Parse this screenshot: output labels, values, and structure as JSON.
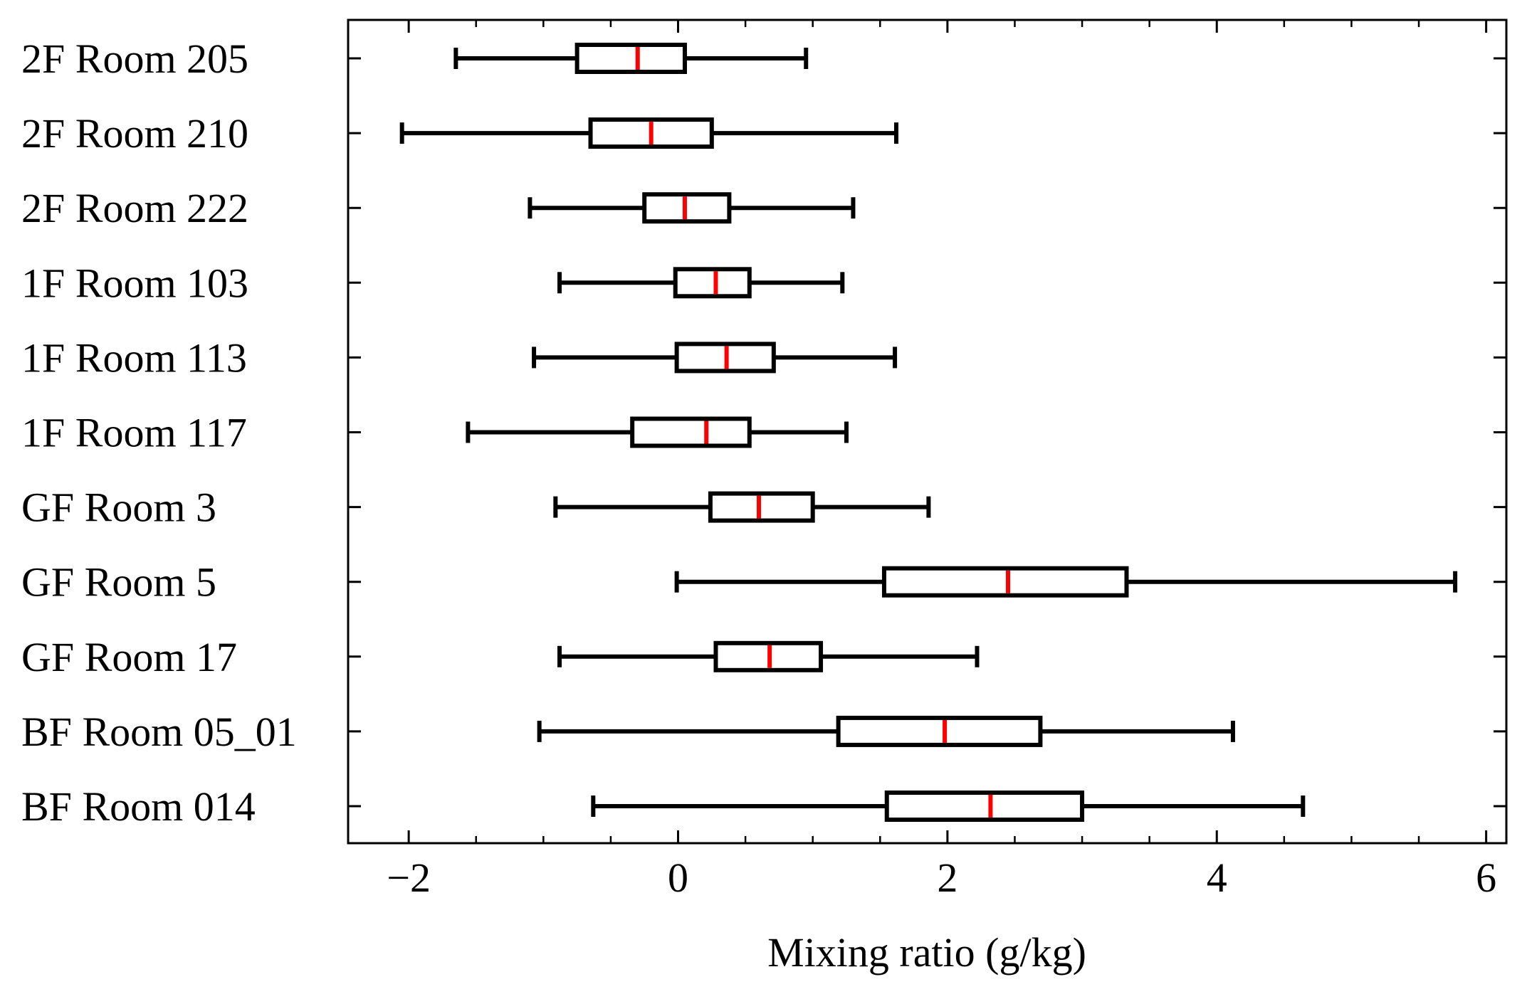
{
  "chart_data": {
    "type": "boxplot",
    "orientation": "horizontal",
    "title": "",
    "xlabel": "Mixing ratio (g/kg)",
    "ylabel": "",
    "xlim": [
      -2.45,
      6.15
    ],
    "xticks": [
      -2,
      0,
      2,
      4,
      6
    ],
    "xtick_labels": [
      "−2",
      "0",
      "2",
      "4",
      "6"
    ],
    "x_minor_step": 0.5,
    "grid": false,
    "categories": [
      "2F Room 205",
      "2F Room 210",
      "2F Room 222",
      "1F Room 103",
      "1F Room 113",
      "1F Room 117",
      "GF Room 3",
      "GF Room 5",
      "GF Room 17",
      "BF Room 05_01",
      "BF Room 014"
    ],
    "boxes": [
      {
        "label": "2F Room 205",
        "whisker_low": -1.65,
        "q1": -0.75,
        "median": -0.3,
        "q3": 0.05,
        "whisker_high": 0.95
      },
      {
        "label": "2F Room 210",
        "whisker_low": -2.05,
        "q1": -0.65,
        "median": -0.2,
        "q3": 0.25,
        "whisker_high": 1.62
      },
      {
        "label": "2F Room 222",
        "whisker_low": -1.1,
        "q1": -0.25,
        "median": 0.05,
        "q3": 0.38,
        "whisker_high": 1.3
      },
      {
        "label": "1F Room 103",
        "whisker_low": -0.88,
        "q1": -0.02,
        "median": 0.28,
        "q3": 0.53,
        "whisker_high": 1.22
      },
      {
        "label": "1F Room 113",
        "whisker_low": -1.07,
        "q1": -0.01,
        "median": 0.36,
        "q3": 0.71,
        "whisker_high": 1.61
      },
      {
        "label": "1F Room 117",
        "whisker_low": -1.56,
        "q1": -0.34,
        "median": 0.21,
        "q3": 0.53,
        "whisker_high": 1.25
      },
      {
        "label": "GF Room 3",
        "whisker_low": -0.91,
        "q1": 0.24,
        "median": 0.6,
        "q3": 1.0,
        "whisker_high": 1.86
      },
      {
        "label": "GF Room 5",
        "whisker_low": -0.01,
        "q1": 1.53,
        "median": 2.45,
        "q3": 3.33,
        "whisker_high": 5.77
      },
      {
        "label": "GF Room 17",
        "whisker_low": -0.88,
        "q1": 0.28,
        "median": 0.68,
        "q3": 1.06,
        "whisker_high": 2.22
      },
      {
        "label": "BF Room 05_01",
        "whisker_low": -1.03,
        "q1": 1.19,
        "median": 1.98,
        "q3": 2.69,
        "whisker_high": 4.12
      },
      {
        "label": "BF Room 014",
        "whisker_low": -0.63,
        "q1": 1.55,
        "median": 2.32,
        "q3": 3.0,
        "whisker_high": 4.64
      }
    ],
    "colors": {
      "box_edge": "#000000",
      "whisker": "#000000",
      "median": "#ff0000",
      "axis": "#000000",
      "background": "#ffffff"
    }
  }
}
